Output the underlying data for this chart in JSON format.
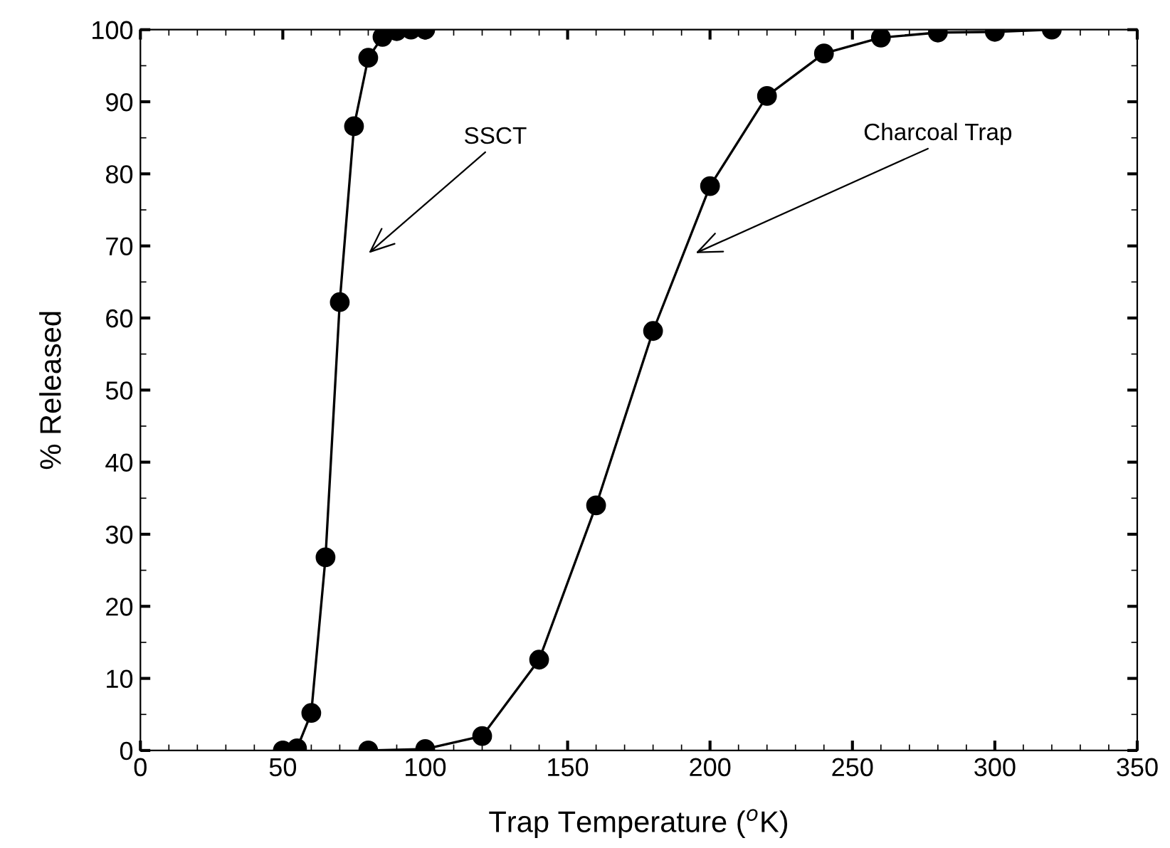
{
  "chart_data": {
    "type": "line",
    "xlabel": "Trap Temperature ($^{o}$K)",
    "ylabel": "% Released",
    "series": [
      {
        "color": "#000000",
        "x": [
          50,
          55,
          60,
          65,
          70,
          75,
          80,
          85,
          90,
          95,
          100
        ],
        "values": [
          0,
          0.3,
          5.2,
          26.8,
          62.2,
          86.6,
          96.1,
          99,
          99.8,
          100,
          100
        ]
      },
      {
        "color": "#000000",
        "x": [
          80,
          100,
          120,
          140,
          160,
          180,
          200,
          220,
          240,
          260,
          280,
          300,
          320
        ],
        "values": [
          0,
          0.2,
          2,
          12.6,
          34,
          58.2,
          78.3,
          90.8,
          96.7,
          98.9,
          99.6,
          99.7,
          100
        ]
      }
    ],
    "annotations": [
      "SSCT",
      "Charcoal Trap"
    ],
    "xlim": [
      0,
      350
    ],
    "xticks": [
      0,
      50,
      100,
      150,
      200,
      250,
      300,
      350
    ],
    "ylim": [
      0,
      100
    ],
    "yticks": [
      0,
      10,
      20,
      30,
      40,
      50,
      60,
      70,
      80,
      90,
      100
    ],
    "marker": "circle",
    "line_style": "solid",
    "grid": false,
    "legend": false
  }
}
